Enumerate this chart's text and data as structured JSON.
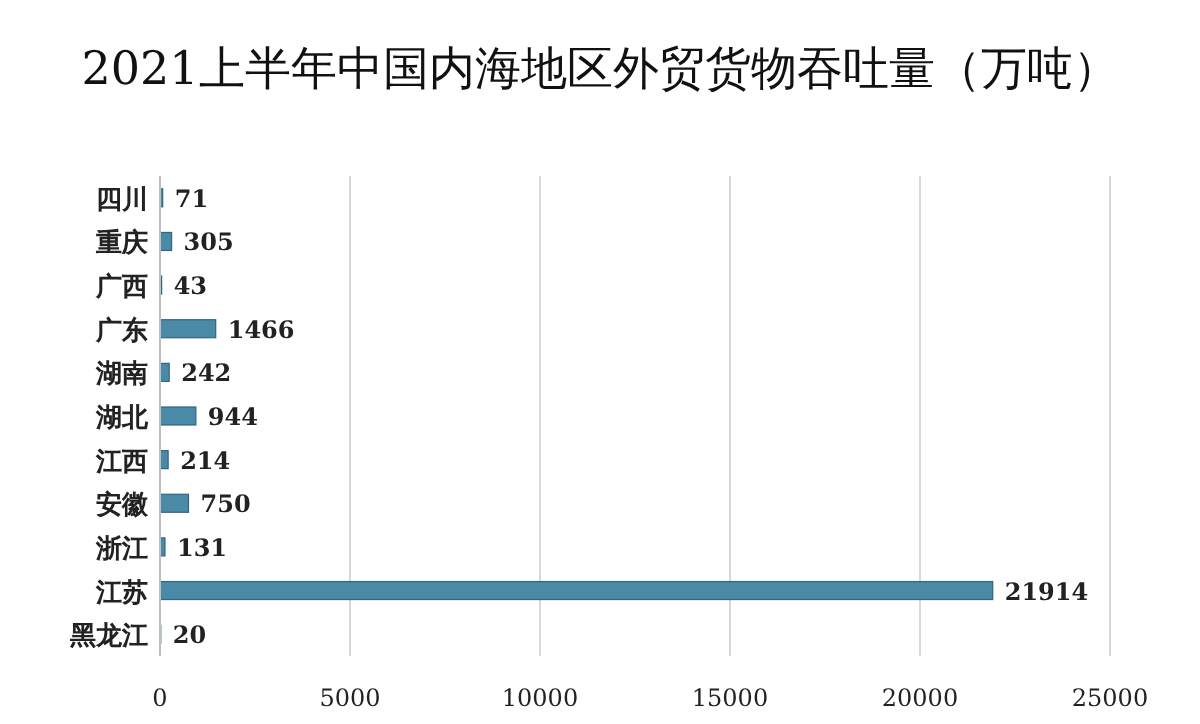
{
  "chart_data": {
    "type": "bar",
    "orientation": "horizontal",
    "title": "2021上半年中国内海地区外贸货物吞吐量（万吨）",
    "categories": [
      "四川",
      "重庆",
      "广西",
      "广东",
      "湖南",
      "湖北",
      "江西",
      "安徽",
      "浙江",
      "江苏",
      "黑龙江"
    ],
    "values": [
      71,
      305,
      43,
      1466,
      242,
      944,
      214,
      750,
      131,
      21914,
      20
    ],
    "color": "#4a8aa6",
    "xlim": [
      0,
      25000
    ],
    "xticks": [
      0,
      5000,
      10000,
      15000,
      20000,
      25000
    ],
    "grid": "x",
    "data_labels": true
  }
}
